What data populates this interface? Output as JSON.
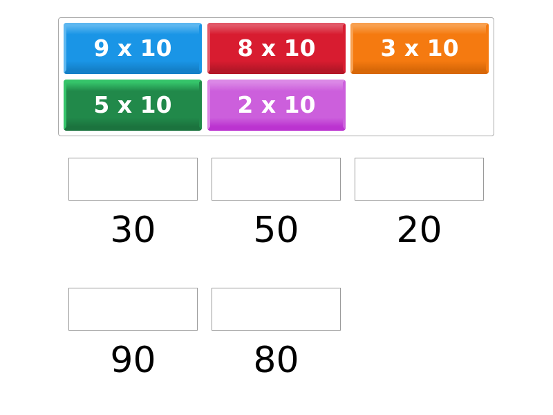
{
  "tiles": [
    {
      "label": "9 x 10",
      "color": "#1a95e6",
      "light": "#5db7f0",
      "dark": "#1480c8"
    },
    {
      "label": "8 x 10",
      "color": "#d81c30",
      "light": "#e25868",
      "dark": "#b51728"
    },
    {
      "label": "3 x 10",
      "color": "#f57a10",
      "light": "#f8a050",
      "dark": "#d86808"
    },
    {
      "label": "5 x 10",
      "color": "#21894a",
      "light": "#35c46a",
      "dark": "#1b733e"
    },
    {
      "label": "2 x 10",
      "color": "#cc5fdc",
      "light": "#db88e6",
      "dark": "#bb33d0"
    }
  ],
  "targets": [
    {
      "answer": "30"
    },
    {
      "answer": "50"
    },
    {
      "answer": "20"
    },
    {
      "answer": "90"
    },
    {
      "answer": "80"
    }
  ]
}
